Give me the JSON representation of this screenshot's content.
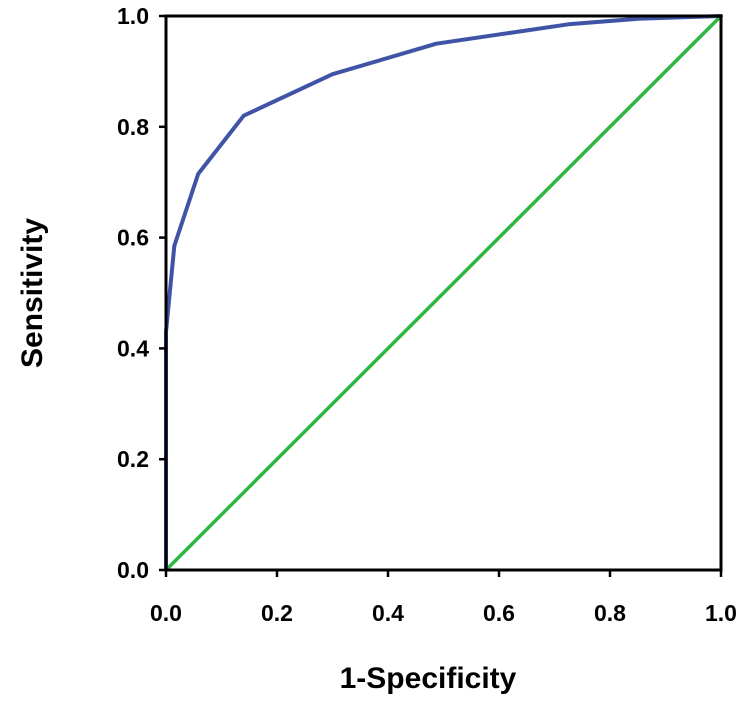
{
  "chart_data": {
    "type": "line",
    "xlabel": "1-Specificity",
    "ylabel": "Sensitivity",
    "xlim": [
      0,
      1
    ],
    "ylim": [
      0,
      1
    ],
    "xticks": [
      "0.0",
      "0.2",
      "0.4",
      "0.6",
      "0.8",
      "1.0"
    ],
    "yticks": [
      "0.0",
      "0.2",
      "0.4",
      "0.6",
      "0.8",
      "1.0"
    ],
    "grid": false,
    "series": [
      {
        "color": "#3f54a6",
        "x": [
          0.0,
          0.0,
          0.0,
          0.015,
          0.058,
          0.14,
          0.3,
          0.487,
          0.725,
          0.85,
          1.0
        ],
        "y": [
          0.0,
          0.2,
          0.43,
          0.585,
          0.715,
          0.82,
          0.895,
          0.95,
          0.985,
          0.995,
          1.0
        ]
      },
      {
        "color": "#2db742",
        "x": [
          0.0,
          1.0
        ],
        "y": [
          0.0,
          1.0
        ]
      }
    ]
  }
}
